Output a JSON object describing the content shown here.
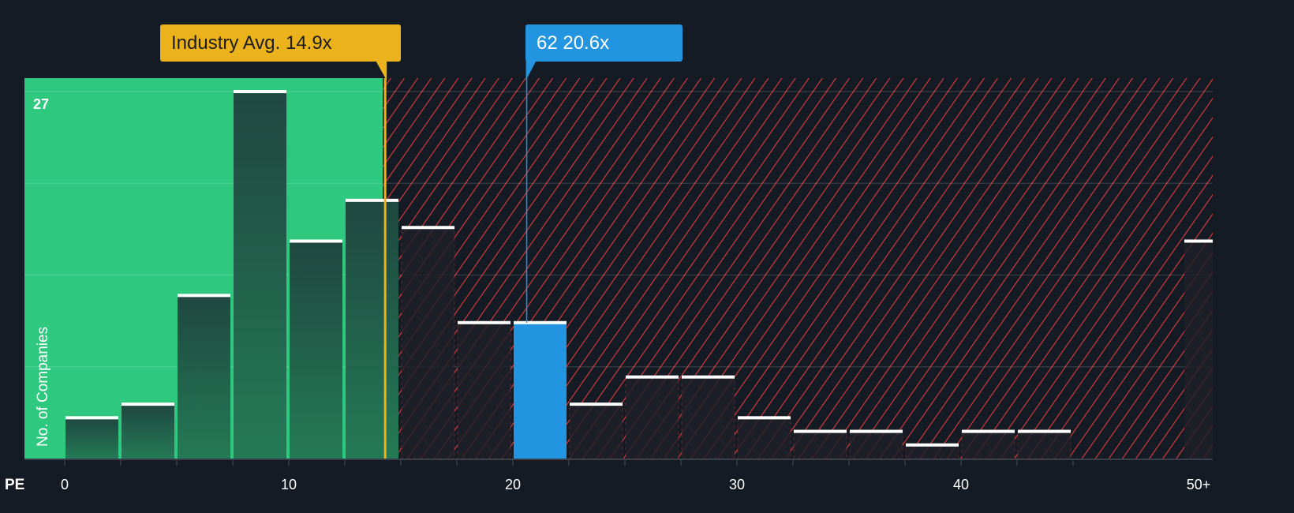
{
  "chart_data": {
    "type": "bar",
    "title": "",
    "xlabel": "PE",
    "ylabel": "No. of Companies",
    "bin_width": 2.5,
    "bins": [
      {
        "from": 0,
        "to": 2.5,
        "value": 3
      },
      {
        "from": 2.5,
        "to": 5,
        "value": 4
      },
      {
        "from": 5,
        "to": 7.5,
        "value": 12
      },
      {
        "from": 7.5,
        "to": 10,
        "value": 27
      },
      {
        "from": 10,
        "to": 12.5,
        "value": 16
      },
      {
        "from": 12.5,
        "to": 15,
        "value": 19
      },
      {
        "from": 15,
        "to": 17.5,
        "value": 17
      },
      {
        "from": 17.5,
        "to": 20,
        "value": 10
      },
      {
        "from": 20,
        "to": 22.5,
        "value": 10,
        "highlight": true
      },
      {
        "from": 22.5,
        "to": 25,
        "value": 4
      },
      {
        "from": 25,
        "to": 27.5,
        "value": 6
      },
      {
        "from": 27.5,
        "to": 30,
        "value": 6
      },
      {
        "from": 30,
        "to": 32.5,
        "value": 3
      },
      {
        "from": 32.5,
        "to": 35,
        "value": 2
      },
      {
        "from": 35,
        "to": 37.5,
        "value": 2
      },
      {
        "from": 37.5,
        "to": 40,
        "value": 1
      },
      {
        "from": 40,
        "to": 42.5,
        "value": 2
      },
      {
        "from": 42.5,
        "to": 45,
        "value": 2
      },
      {
        "from": 45,
        "to": 47.5,
        "value": 0
      },
      {
        "from": 50,
        "to": null,
        "value": 16,
        "label": "50+"
      }
    ],
    "x_ticks": [
      "0",
      "10",
      "20",
      "30",
      "40",
      "50+"
    ],
    "x_tick_values": [
      0,
      10,
      20,
      30,
      40,
      50
    ],
    "y_max_label": "27",
    "ylim": [
      0,
      28
    ],
    "industry_avg": {
      "value": 14.9,
      "label": "Industry Avg. 14.9x"
    },
    "company": {
      "value": 20.6,
      "label": "62 20.6x"
    },
    "colors": {
      "background": "#151b24",
      "undervalued": "#2ec97f",
      "overvalued_hatch": "#e03c3c",
      "industry": "#ecb21b",
      "company": "#2394e0",
      "bar_dark": "#1f4a3e"
    }
  }
}
